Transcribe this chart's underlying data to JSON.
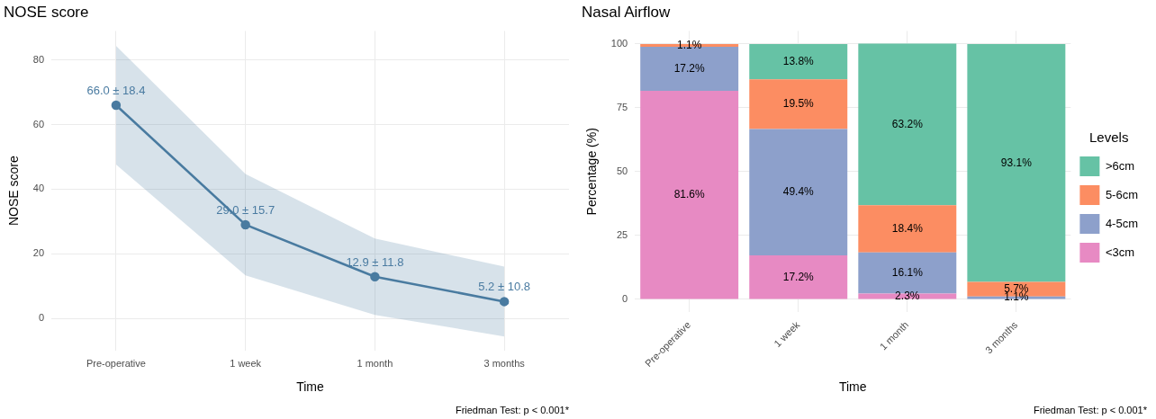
{
  "chart_data": [
    {
      "type": "line",
      "title": "NOSE score",
      "xlabel": "Time",
      "ylabel": "NOSE score",
      "categories": [
        "Pre-operative",
        "1 week",
        "1 month",
        "3 months"
      ],
      "series": [
        {
          "color": "#4a7ba1",
          "values": [
            66.0,
            29.0,
            12.9,
            5.2
          ],
          "lower": [
            47.6,
            13.3,
            1.1,
            -5.6
          ],
          "upper": [
            84.4,
            44.7,
            24.7,
            16.0
          ],
          "value_labels": [
            "66.0 ± 18.4",
            "29.0 ± 15.7",
            "12.9 ± 11.8",
            "5.2 ± 10.8"
          ]
        }
      ],
      "ylim": [
        -10,
        89
      ],
      "yticks": [
        0,
        20,
        40,
        60,
        80
      ],
      "grid": true,
      "marker": "circle",
      "line_style": "solid",
      "annotations": [
        "Friedman Test: p < 0.001*"
      ]
    },
    {
      "type": "bar",
      "title": "Nasal Airflow",
      "xlabel": "Time",
      "ylabel": "Percentage (%)",
      "legend_title": "Levels",
      "categories": [
        "Pre-operative",
        "1 week",
        "1 month",
        "3 months"
      ],
      "stacked": true,
      "series": [
        {
          "name": "<3cm",
          "color": "#e78ac3",
          "values": [
            81.6,
            17.2,
            2.3,
            null
          ],
          "value_labels": [
            "81.6%",
            "17.2%",
            "2.3%",
            null
          ]
        },
        {
          "name": "4-5cm",
          "color": "#8da0cb",
          "values": [
            17.2,
            49.4,
            16.1,
            1.1
          ],
          "value_labels": [
            "17.2%",
            "49.4%",
            "16.1%",
            "1.1%"
          ]
        },
        {
          "name": "5-6cm",
          "color": "#fc8d62",
          "values": [
            1.1,
            19.5,
            18.4,
            5.7
          ],
          "value_labels": [
            "1.1%",
            "19.5%",
            "18.4%",
            "5.7%"
          ]
        },
        {
          "name": ">6cm",
          "color": "#66c2a5",
          "values": [
            null,
            13.8,
            63.2,
            93.1
          ],
          "value_labels": [
            null,
            "13.8%",
            "63.2%",
            "93.1%"
          ]
        }
      ],
      "ylim": [
        -5,
        105
      ],
      "yticks": [
        0,
        25,
        50,
        75,
        100
      ],
      "grid": true,
      "legend": "right",
      "annotations": [
        "Friedman Test: p < 0.001*"
      ]
    }
  ]
}
